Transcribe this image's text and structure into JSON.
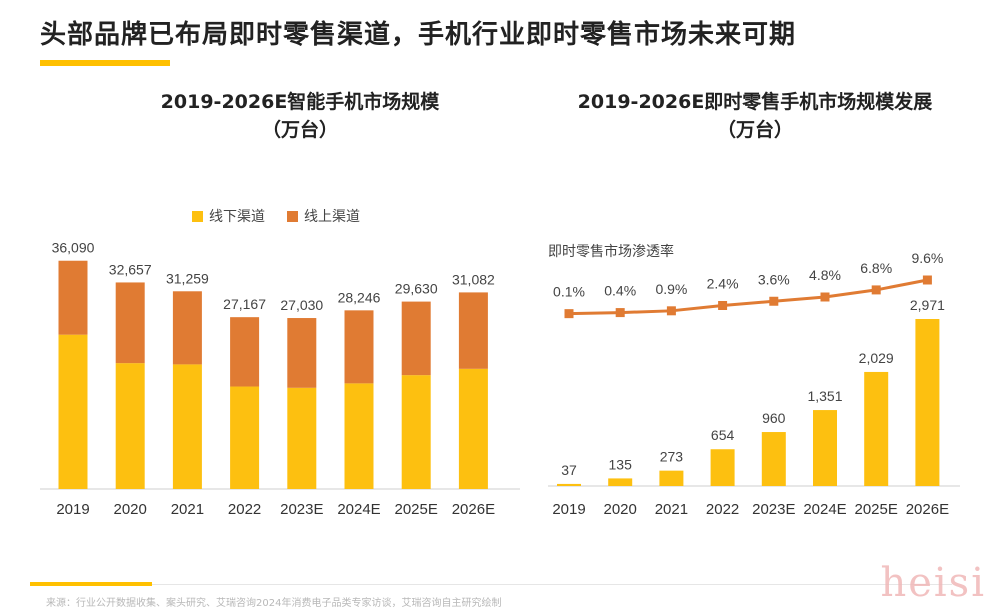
{
  "headline": "头部品牌已布局即时零售渠道，手机行业即时零售市场未来可期",
  "colors": {
    "accent": "#FFC000",
    "online": "#E07B33",
    "offline": "#FDC010",
    "bar": "#FDC010",
    "line": "#E07B33"
  },
  "left_title_line1": "2019-2026E智能手机市场规模",
  "left_title_line2": "（万台）",
  "right_title_line1": "2019-2026E即时零售手机市场规模发展",
  "right_title_line2": "（万台）",
  "line_series_label": "即时零售市场渗透率",
  "source": "来源：行业公开数据收集、案头研究、艾瑞咨询2024年消费电子品类专家访谈，艾瑞咨询自主研究绘制",
  "watermark": "heisi",
  "chart_data": [
    {
      "type": "bar",
      "stacked": true,
      "title": "2019-2026E智能手机市场规模（万台）",
      "categories": [
        "2019",
        "2020",
        "2021",
        "2022",
        "2023E",
        "2024E",
        "2025E",
        "2026E"
      ],
      "series": [
        {
          "name": "线下渠道",
          "color": "#FDC010",
          "values": [
            24400,
            19900,
            19700,
            16200,
            16000,
            16700,
            18000,
            19000
          ]
        },
        {
          "name": "线上渠道",
          "color": "#E07B33",
          "values": [
            11690,
            12757,
            11559,
            10967,
            11030,
            11546,
            11630,
            12082
          ]
        }
      ],
      "total_labels": [
        "36,090",
        "32,657",
        "31,259",
        "27,167",
        "27,030",
        "28,246",
        "29,630",
        "31,082"
      ],
      "ylim": [
        0,
        40000
      ],
      "legend": "top"
    },
    {
      "type": "bar+line",
      "title": "2019-2026E即时零售手机市场规模发展（万台）",
      "categories": [
        "2019",
        "2020",
        "2021",
        "2022",
        "2023E",
        "2024E",
        "2025E",
        "2026E"
      ],
      "bars": {
        "color": "#FDC010",
        "values": [
          37,
          135,
          273,
          654,
          960,
          1351,
          2029,
          2971
        ],
        "labels": [
          "37",
          "135",
          "273",
          "654",
          "960",
          "1,351",
          "2,029",
          "2,971"
        ],
        "ylim": [
          0,
          3200
        ]
      },
      "line": {
        "name": "即时零售市场渗透率",
        "color": "#E07B33",
        "values": [
          0.1,
          0.4,
          0.9,
          2.4,
          3.6,
          4.8,
          6.8,
          9.6
        ],
        "labels": [
          "0.1%",
          "0.4%",
          "0.9%",
          "2.4%",
          "3.6%",
          "4.8%",
          "6.8%",
          "9.6%"
        ],
        "ylim": [
          0,
          40
        ]
      }
    }
  ]
}
